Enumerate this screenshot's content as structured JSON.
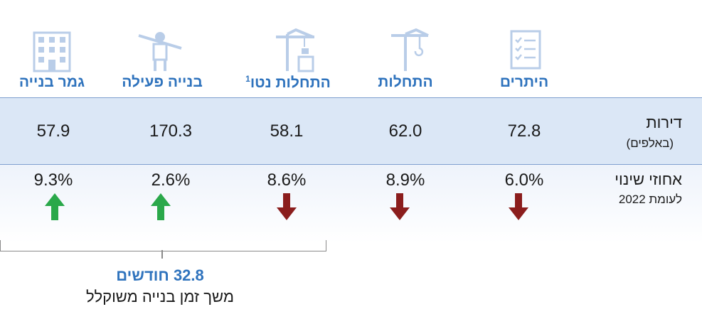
{
  "columns": [
    {
      "label": "היתרים",
      "value": "72.8",
      "pct": "6.0%",
      "dir": "down"
    },
    {
      "label": "התחלות",
      "value": "62.0",
      "pct": "8.9%",
      "dir": "down"
    },
    {
      "label": "התחלות נטו",
      "sup": "1",
      "value": "58.1",
      "pct": "8.6%",
      "dir": "down"
    },
    {
      "label": "בנייה פעילה",
      "value": "170.3",
      "pct": "2.6%",
      "dir": "up"
    },
    {
      "label": "גמר בנייה",
      "value": "57.9",
      "pct": "9.3%",
      "dir": "up"
    }
  ],
  "rows": {
    "units_label": "דירות",
    "units_sub": "(באלפים)",
    "change_label": "אחוזי שינוי",
    "change_sub": "לעומת 2022"
  },
  "footer": {
    "big": "32.8 חודשים",
    "sub": "משך זמן בנייה משוקלל"
  },
  "colors": {
    "accent": "#2f73bd",
    "band": "#dbe7f6",
    "up": "#2aa84a",
    "down": "#8b1d1d",
    "icon": "#b9cde8"
  },
  "icons": [
    "checklist-icon",
    "crane-icon",
    "construction-crane-icon",
    "worker-icon",
    "building-icon"
  ]
}
